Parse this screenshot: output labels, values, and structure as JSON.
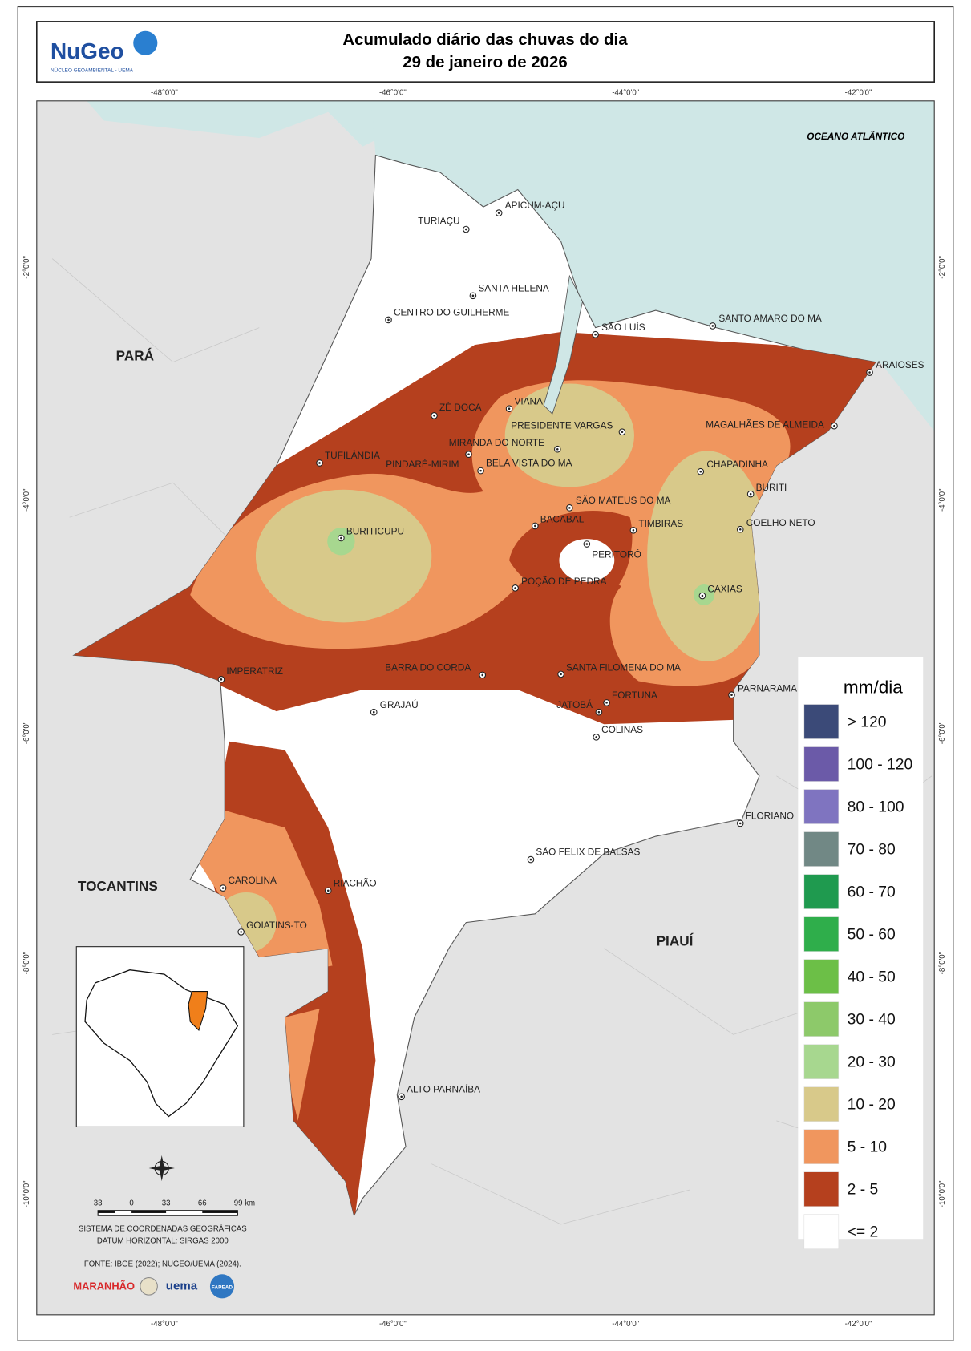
{
  "header": {
    "logo": "NuGeo",
    "logo_subtitle": "NÚCLEO GEOAMBIENTAL - UEMA",
    "title_line1": "Acumulado diário das chuvas do dia",
    "title_line2": "29 de janeiro de 2026"
  },
  "grid_labels": {
    "lon": [
      "-48°0'0\"",
      "-46°0'0\"",
      "-44°0'0\"",
      "-42°0'0\""
    ],
    "lat": [
      "-2°0'0\"",
      "-4°0'0\"",
      "-6°0'0\"",
      "-8°0'0\"",
      "-10°0'0\""
    ]
  },
  "regions": {
    "ocean": "OCEANO ATLÂNTICO",
    "states": [
      "PARÁ",
      "TOCANTINS",
      "PIAUÍ"
    ]
  },
  "cities": [
    "TURIAÇU",
    "APICUM-AÇU",
    "SANTA HELENA",
    "CENTRO DO GUILHERME",
    "SÃO LUÍS",
    "SANTO AMARO DO MA",
    "ARAIOSES",
    "ZÉ DOCA",
    "VIANA",
    "PRESIDENTE VARGAS",
    "MAGALHÃES DE ALMEIDA",
    "MIRANDA DO NORTE",
    "TUFILÂNDIA",
    "PINDARÉ-MIRIM",
    "BELA VISTA DO MA",
    "CHAPADINHA",
    "BURITI",
    "SÃO MATEUS DO MA",
    "BACABAL",
    "TIMBIRAS",
    "COELHO NETO",
    "BURITICUPU",
    "PERITORÓ",
    "POÇÃO DE PEDRA",
    "CAXIAS",
    "IMPERATRIZ",
    "BARRA DO CORDA",
    "SANTA FILOMENA DO MA",
    "PARNARAMA",
    "FORTUNA",
    "JATOBÁ",
    "GRAJAÚ",
    "COLINAS",
    "FLORIANO",
    "SÃO FELIX DE BALSAS",
    "CAROLINA",
    "RIACHÃO",
    "GOIATINS-TO",
    "ALTO PARNAÍBA"
  ],
  "legend": {
    "title": "mm/dia",
    "items": [
      {
        "label": "> 120",
        "color": "#3b4a78"
      },
      {
        "label": "100 - 120",
        "color": "#6b5aa8"
      },
      {
        "label": "80 - 100",
        "color": "#7f74c0"
      },
      {
        "label": "70 - 80",
        "color": "#718885"
      },
      {
        "label": "60 - 70",
        "color": "#1f9a4f"
      },
      {
        "label": "50 - 60",
        "color": "#2fae4b"
      },
      {
        "label": "40 - 50",
        "color": "#6cbf47"
      },
      {
        "label": "30 - 40",
        "color": "#8dc96a"
      },
      {
        "label": "20 - 30",
        "color": "#a7d78f"
      },
      {
        "label": "10 - 20",
        "color": "#d8c98a"
      },
      {
        "label": "5 - 10",
        "color": "#f0965e"
      },
      {
        "label": "2 - 5",
        "color": "#b5401e"
      },
      {
        "label": "<= 2",
        "color": "#ffffff"
      }
    ]
  },
  "scale_bar": [
    "33",
    "0",
    "33",
    "66",
    "99 km"
  ],
  "footer": {
    "crs": "SISTEMA DE COORDENADAS GEOGRÁFICAS",
    "datum": "DATUM HORIZONTAL: SIRGAS 2000",
    "source": "FONTE: IBGE (2022); NUGEO/UEMA (2024).",
    "logos": [
      "MARANHÃO",
      "uema",
      "FAPEAD"
    ]
  }
}
